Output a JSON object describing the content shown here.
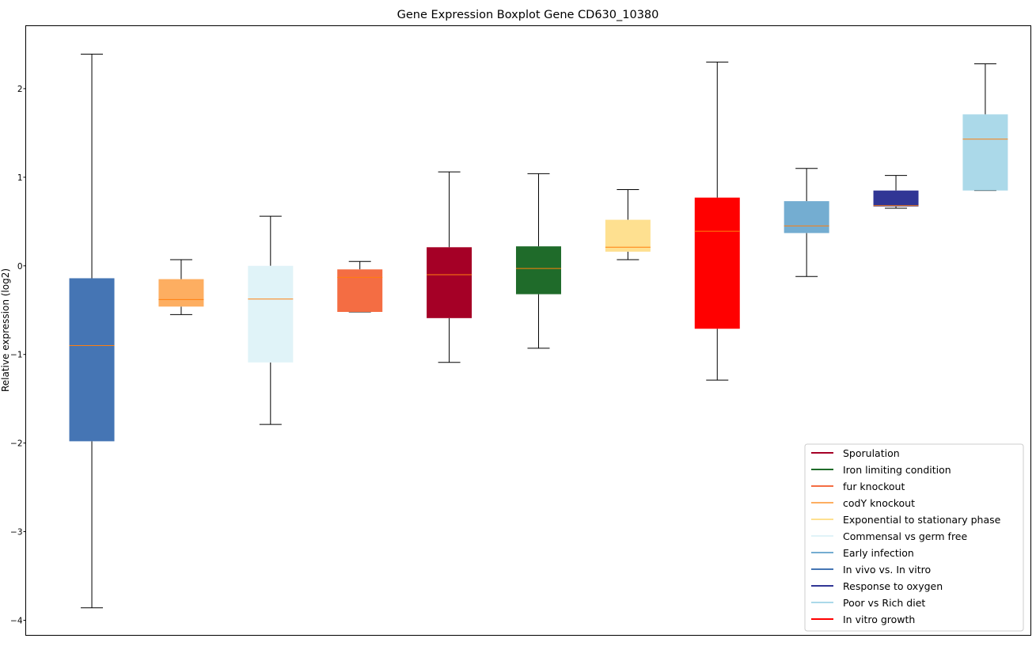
{
  "chart_data": {
    "type": "boxplot",
    "title": "Gene Expression Boxplot Gene CD630_10380",
    "xlabel": "",
    "ylabel": "Relative expression (log2)",
    "ylim": [
      -4.17,
      2.71
    ],
    "yticks": [
      2,
      1,
      0,
      -1,
      -2,
      -3,
      -4
    ],
    "ytick_labels": [
      "2",
      "1",
      "0",
      "−1",
      "−2",
      "−3",
      "−4"
    ],
    "grid": false,
    "legend_position": "lower-right",
    "median_color": "#ff7f0e",
    "boxes": [
      {
        "name": "In vivo vs. In vitro",
        "color": "#4575b4",
        "whislo": -3.86,
        "q1": -1.98,
        "med": -0.9,
        "q3": -0.14,
        "whishi": 2.39
      },
      {
        "name": "codY knockout",
        "color": "#fdae61",
        "whislo": -0.55,
        "q1": -0.46,
        "med": -0.38,
        "q3": -0.15,
        "whishi": 0.07
      },
      {
        "name": "Commensal vs germ free",
        "color": "#e0f3f8",
        "whislo": -1.79,
        "q1": -1.09,
        "med": -0.375,
        "q3": 0.0,
        "whishi": 0.56
      },
      {
        "name": "fur knockout",
        "color": "#f46d43",
        "whislo": -0.52,
        "q1": -0.52,
        "med": -0.13,
        "q3": -0.04,
        "whishi": 0.05
      },
      {
        "name": "Sporulation",
        "color": "#a50026",
        "whislo": -1.09,
        "q1": -0.59,
        "med": -0.1,
        "q3": 0.21,
        "whishi": 1.06
      },
      {
        "name": "Iron limiting condition",
        "color": "#1f6b2a",
        "whislo": -0.93,
        "q1": -0.32,
        "med": -0.03,
        "q3": 0.22,
        "whishi": 1.04
      },
      {
        "name": "Exponential to stationary phase",
        "color": "#fee090",
        "whislo": 0.07,
        "q1": 0.16,
        "med": 0.21,
        "q3": 0.52,
        "whishi": 0.86
      },
      {
        "name": "In vitro growth",
        "color": "#ff0000",
        "whislo": -1.29,
        "q1": -0.71,
        "med": 0.39,
        "q3": 0.77,
        "whishi": 2.3
      },
      {
        "name": "Early infection",
        "color": "#74add1",
        "whislo": -0.12,
        "q1": 0.37,
        "med": 0.45,
        "q3": 0.73,
        "whishi": 1.1
      },
      {
        "name": "Response to oxygen",
        "color": "#313695",
        "whislo": 0.65,
        "q1": 0.67,
        "med": 0.68,
        "q3": 0.85,
        "whishi": 1.02
      },
      {
        "name": "Poor vs Rich diet",
        "color": "#abd9e9",
        "whislo": 0.85,
        "q1": 0.85,
        "med": 1.43,
        "q3": 1.71,
        "whishi": 2.28
      }
    ],
    "legend": [
      {
        "label": "Sporulation",
        "color": "#a50026"
      },
      {
        "label": "Iron limiting condition",
        "color": "#1f6b2a"
      },
      {
        "label": "fur knockout",
        "color": "#f46d43"
      },
      {
        "label": "codY knockout",
        "color": "#fdae61"
      },
      {
        "label": "Exponential to stationary phase",
        "color": "#fee090"
      },
      {
        "label": "Commensal vs germ free",
        "color": "#e0f3f8"
      },
      {
        "label": "Early infection",
        "color": "#74add1"
      },
      {
        "label": "In vivo vs. In vitro",
        "color": "#4575b4"
      },
      {
        "label": "Response to oxygen",
        "color": "#313695"
      },
      {
        "label": "Poor vs Rich diet",
        "color": "#abd9e9"
      },
      {
        "label": "In vitro growth",
        "color": "#ff0000"
      }
    ]
  }
}
